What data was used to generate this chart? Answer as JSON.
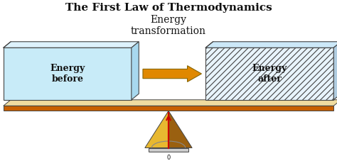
{
  "title": "The First Law of Thermodynamics",
  "subtitle_line1": "Energy",
  "subtitle_line2": "transformation",
  "title_fontsize": 11,
  "subtitle_fontsize": 10,
  "bg_color": "#ffffff",
  "box_left_face_color": "#c8ebf8",
  "box_left_top_color": "#ddf2fc",
  "box_left_side_color": "#a8d8ee",
  "box_right_face_color": "#e8f4fc",
  "box_right_top_color": "#cce8f8",
  "box_right_side_color": "#b0cce0",
  "box_outline_color": "#444444",
  "beam_front_color": "#c86000",
  "beam_top_color": "#f0dca0",
  "tri_left_color": "#e8b830",
  "tri_right_color": "#9a6010",
  "tri_base_color": "#cccccc",
  "needle_color": "#cc0000",
  "arrow_face_color": "#e08800",
  "arrow_edge_color": "#886600",
  "text_color": "#111111",
  "label_fontsize": 9,
  "hatch_color": "#99bbcc"
}
